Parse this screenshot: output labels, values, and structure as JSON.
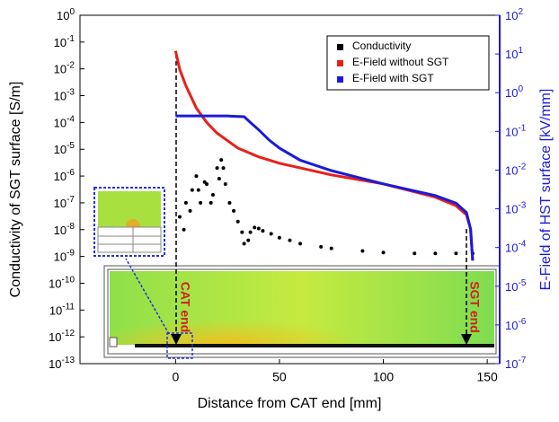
{
  "chart_data": {
    "type": "scatter",
    "xlabel": "Distance from CAT end [mm]",
    "ylabel": "Conductivity of SGT surface [S/m]",
    "y2label": "E-Field of HST surface [kV/mm]",
    "xlim": [
      -46,
      156
    ],
    "xticks": [
      0,
      50,
      100,
      150
    ],
    "ylim": [
      1e-13,
      1
    ],
    "ylog": true,
    "yticks": [
      {
        "value": 1,
        "label": "10^0"
      },
      {
        "value": 0.1,
        "label": "10^-1"
      },
      {
        "value": 0.01,
        "label": "10^-2"
      },
      {
        "value": 0.001,
        "label": "10^-3"
      },
      {
        "value": 0.0001,
        "label": "10^-4"
      },
      {
        "value": 1e-05,
        "label": "10^-5"
      },
      {
        "value": 1e-06,
        "label": "10^-6"
      },
      {
        "value": 1e-07,
        "label": "10^-7"
      },
      {
        "value": 1e-08,
        "label": "10^-8"
      },
      {
        "value": 1e-09,
        "label": "10^-9"
      },
      {
        "value": 1e-10,
        "label": "10^-10"
      },
      {
        "value": 1e-11,
        "label": "10^-11"
      },
      {
        "value": 1e-12,
        "label": "10^-12"
      },
      {
        "value": 1e-13,
        "label": "10^-13"
      }
    ],
    "y2lim": [
      1e-07,
      100
    ],
    "y2log": true,
    "y2ticks": [
      {
        "value": 100,
        "label": "10^2"
      },
      {
        "value": 10,
        "label": "10^1"
      },
      {
        "value": 1,
        "label": "10^0"
      },
      {
        "value": 0.1,
        "label": "10^-1"
      },
      {
        "value": 0.01,
        "label": "10^-2"
      },
      {
        "value": 0.001,
        "label": "10^-3"
      },
      {
        "value": 0.0001,
        "label": "10^-4"
      },
      {
        "value": 1e-05,
        "label": "10^-5"
      },
      {
        "value": 1e-06,
        "label": "10^-6"
      },
      {
        "value": 1e-07,
        "label": "10^-7"
      }
    ],
    "y2color": "#1a1adc",
    "legend": "upper right",
    "series": [
      {
        "name": "Conductivity",
        "color": "#000000",
        "mode": "markers",
        "x": [
          2,
          4,
          5,
          7,
          8,
          10,
          11,
          12,
          14,
          15,
          17,
          18,
          20,
          21,
          22,
          23,
          24,
          26,
          28,
          30,
          32,
          33,
          35,
          36,
          38,
          40,
          42,
          46,
          50,
          55,
          60,
          70,
          75,
          90,
          100,
          115,
          125,
          135,
          143
        ],
        "values": [
          3e-08,
          1e-08,
          1e-07,
          5e-08,
          3e-07,
          1e-06,
          3e-07,
          1e-07,
          6e-07,
          5e-07,
          1e-07,
          2e-07,
          2e-06,
          8e-07,
          4e-06,
          2e-06,
          5e-07,
          1e-07,
          5e-08,
          2e-08,
          8e-09,
          3e-09,
          4e-09,
          8e-09,
          1.2e-08,
          1.1e-08,
          9e-09,
          7e-09,
          5e-09,
          4e-09,
          3e-09,
          2.3e-09,
          2e-09,
          1.6e-09,
          1.4e-09,
          1.3e-09,
          1.3e-09,
          1.3e-09,
          1.3e-09
        ]
      },
      {
        "name": "E-Field without SGT",
        "color": "#e8201a",
        "axis": "y2",
        "mode": "line",
        "x": [
          0,
          2,
          5,
          10,
          15,
          20,
          30,
          40,
          50,
          75,
          100,
          125,
          135,
          140,
          142,
          143
        ],
        "values": [
          12,
          4,
          1.5,
          0.4,
          0.17,
          0.09,
          0.037,
          0.022,
          0.015,
          0.0075,
          0.0044,
          0.002,
          0.0012,
          0.0007,
          0.0003,
          4.6e-05
        ]
      },
      {
        "name": "E-Field with SGT",
        "color": "#1a1adc",
        "axis": "y2",
        "mode": "line",
        "x": [
          0,
          5,
          15,
          25,
          33,
          36,
          40,
          45,
          50,
          60,
          75,
          100,
          125,
          135,
          140,
          142,
          143
        ],
        "values": [
          0.25,
          0.25,
          0.25,
          0.25,
          0.24,
          0.17,
          0.11,
          0.06,
          0.037,
          0.018,
          0.0097,
          0.0044,
          0.0022,
          0.0014,
          0.0008,
          0.0003,
          4.6e-05
        ]
      }
    ],
    "annotations": [
      "CAT end",
      "SGT end"
    ]
  }
}
